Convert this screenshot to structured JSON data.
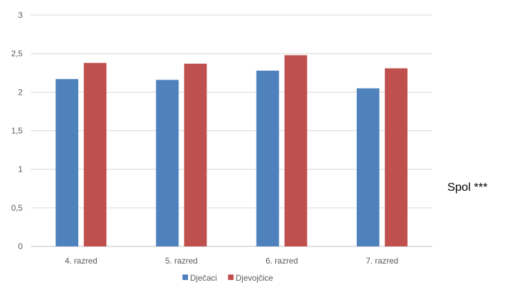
{
  "chart_data": {
    "type": "bar",
    "title": "",
    "xlabel": "",
    "ylabel": "",
    "categories": [
      "4. razred",
      "5. razred",
      "6. razred",
      "7. razred"
    ],
    "series": [
      {
        "name": "Dječaci",
        "color": "#4F81BD",
        "values": [
          2.17,
          2.16,
          2.28,
          2.05
        ]
      },
      {
        "name": "Djevojčice",
        "color": "#C0504D",
        "values": [
          2.38,
          2.37,
          2.48,
          2.31
        ]
      }
    ],
    "ylim": [
      0,
      3
    ],
    "yticks": [
      0,
      0.5,
      1,
      1.5,
      2,
      2.5,
      3
    ],
    "ytick_labels": [
      "0",
      "0,5",
      "1",
      "1,5",
      "2",
      "2,5",
      "3"
    ],
    "grid": true,
    "legend_position": "bottom"
  },
  "side_note": "Spol ***"
}
